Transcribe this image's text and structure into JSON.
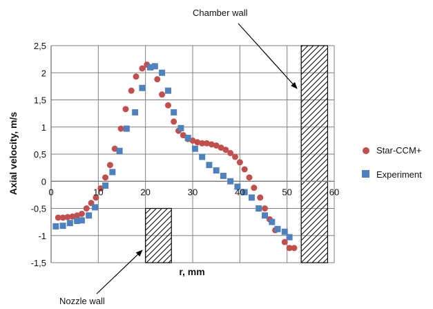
{
  "chart_data": {
    "type": "scatter",
    "xlabel": "r, mm",
    "ylabel": "Axial velocity, m/s",
    "xlim": [
      0,
      60
    ],
    "ylim": [
      -1.5,
      2.5
    ],
    "x_ticks": [
      "0",
      "10",
      "20",
      "30",
      "40",
      "50",
      "60"
    ],
    "y_ticks": [
      "2,5",
      "2",
      "1,5",
      "1",
      "0,5",
      "0",
      "-0,5",
      "-1",
      "-1,5"
    ],
    "grid": true,
    "legend_position": "right",
    "series": [
      {
        "name": "Star-CCM+",
        "marker": "circle",
        "color": "#c0504d",
        "points": [
          [
            1.5,
            -0.67
          ],
          [
            2.5,
            -0.67
          ],
          [
            3.5,
            -0.66
          ],
          [
            4.5,
            -0.65
          ],
          [
            5.5,
            -0.63
          ],
          [
            6.5,
            -0.6
          ],
          [
            7.5,
            -0.5
          ],
          [
            8.5,
            -0.4
          ],
          [
            9.5,
            -0.3
          ],
          [
            10.5,
            -0.13
          ],
          [
            11.5,
            0.07
          ],
          [
            12.5,
            0.3
          ],
          [
            13.5,
            0.6
          ],
          [
            14.8,
            0.97
          ],
          [
            15.8,
            1.33
          ],
          [
            17,
            1.67
          ],
          [
            18,
            1.93
          ],
          [
            19.3,
            2.08
          ],
          [
            20.3,
            2.15
          ],
          [
            21.3,
            2.1
          ],
          [
            22.5,
            1.88
          ],
          [
            23.5,
            1.6
          ],
          [
            24.8,
            1.4
          ],
          [
            26,
            1.1
          ],
          [
            27,
            0.93
          ],
          [
            28,
            0.85
          ],
          [
            29,
            0.78
          ],
          [
            30,
            0.75
          ],
          [
            31,
            0.72
          ],
          [
            32,
            0.7
          ],
          [
            33,
            0.7
          ],
          [
            34,
            0.68
          ],
          [
            35,
            0.66
          ],
          [
            36,
            0.62
          ],
          [
            37,
            0.58
          ],
          [
            38,
            0.52
          ],
          [
            39,
            0.45
          ],
          [
            40,
            0.35
          ],
          [
            41,
            0.22
          ],
          [
            42,
            0.07
          ],
          [
            43,
            -0.12
          ],
          [
            44.3,
            -0.3
          ],
          [
            45.3,
            -0.5
          ],
          [
            46.3,
            -0.7
          ],
          [
            47.5,
            -0.9
          ],
          [
            49.5,
            -1.12
          ],
          [
            50.5,
            -1.23
          ],
          [
            51.5,
            -1.23
          ]
        ]
      },
      {
        "name": "Experiment",
        "marker": "square",
        "color": "#4f81bd",
        "points": [
          [
            1,
            -0.83
          ],
          [
            2.5,
            -0.82
          ],
          [
            4,
            -0.77
          ],
          [
            5.5,
            -0.73
          ],
          [
            6.5,
            -0.72
          ],
          [
            8,
            -0.63
          ],
          [
            9.3,
            -0.48
          ],
          [
            11.5,
            -0.08
          ],
          [
            13,
            0.17
          ],
          [
            14.5,
            0.56
          ],
          [
            16,
            0.97
          ],
          [
            17.8,
            1.27
          ],
          [
            19.3,
            1.72
          ],
          [
            21,
            2.1
          ],
          [
            22,
            2.12
          ],
          [
            23.5,
            2.0
          ],
          [
            24.8,
            1.67
          ],
          [
            26,
            1.27
          ],
          [
            27.5,
            0.98
          ],
          [
            29,
            0.8
          ],
          [
            30.5,
            0.6
          ],
          [
            32,
            0.45
          ],
          [
            33.5,
            0.3
          ],
          [
            35,
            0.2
          ],
          [
            36.5,
            0.1
          ],
          [
            38,
            0.0
          ],
          [
            39.5,
            -0.1
          ],
          [
            41,
            -0.2
          ],
          [
            42.5,
            -0.3
          ],
          [
            44,
            -0.5
          ],
          [
            45.3,
            -0.63
          ],
          [
            46.8,
            -0.75
          ],
          [
            48,
            -0.88
          ],
          [
            49.5,
            -0.93
          ],
          [
            50.5,
            -1.03
          ]
        ]
      }
    ],
    "walls": [
      {
        "label": "Chamber wall",
        "x_range": [
          53,
          58.6
        ],
        "y_range": [
          -1.5,
          2.5
        ]
      },
      {
        "label": "Nozzle wall",
        "x_range": [
          20,
          25.5
        ],
        "y_range": [
          -1.5,
          -0.5
        ]
      }
    ]
  },
  "colors": {
    "star_ccm": "#c0504d",
    "experiment": "#4f81bd",
    "grid": "#7f7f7f",
    "axis": "#7f7f7f"
  }
}
